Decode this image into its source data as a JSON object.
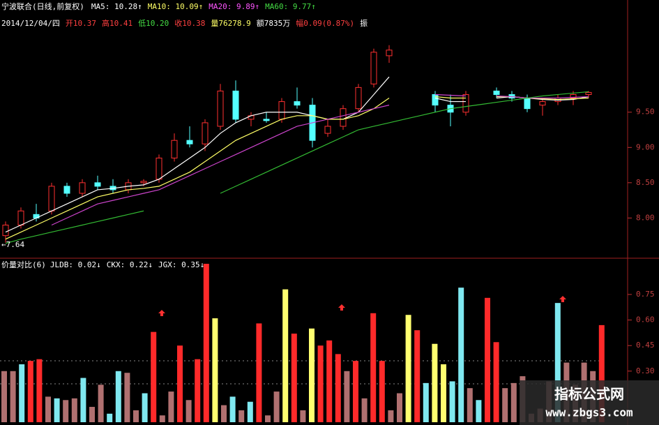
{
  "chart_data": [
    {
      "type": "candlestick",
      "title": "宁波联合(日线,前复权)",
      "legend": [
        {
          "text": "MA5: 10.28↑",
          "color": "#ffffff"
        },
        {
          "text": "MA10: 10.09↑",
          "color": "#ffff66"
        },
        {
          "text": "MA20: 9.89↑",
          "color": "#ff55ff"
        },
        {
          "text": "MA60: 9.77↑",
          "color": "#44dd44"
        }
      ],
      "info": [
        {
          "text": "2014/12/04/四",
          "color": "#ffffff"
        },
        {
          "text": "开10.37",
          "color": "#ff4040"
        },
        {
          "text": "高10.41",
          "color": "#ff4040"
        },
        {
          "text": "低10.20",
          "color": "#44dd44"
        },
        {
          "text": "收10.38",
          "color": "#ff4040"
        },
        {
          "text": "量76278.9",
          "color": "#ffff66"
        },
        {
          "text": "额7835万",
          "color": "#ffffff"
        },
        {
          "text": "幅0.09(0.87%)",
          "color": "#ff4040"
        },
        {
          "text": "振",
          "color": "#ffffff"
        }
      ],
      "annotation": "←7.64",
      "open": [
        7.75,
        7.9,
        8.05,
        8.1,
        8.45,
        8.35,
        8.5,
        8.45,
        8.4,
        8.5,
        8.55,
        8.85,
        9.1,
        9.05,
        9.3,
        9.8,
        9.4,
        9.4,
        9.4,
        9.65,
        9.6,
        9.2,
        9.3,
        9.55,
        9.9,
        10.3,
        null,
        null,
        9.75,
        9.6,
        9.5,
        null,
        9.8,
        9.75,
        9.7,
        9.6,
        9.65,
        9.7,
        9.75
      ],
      "high": [
        7.95,
        8.15,
        8.2,
        8.5,
        8.5,
        8.55,
        8.6,
        8.55,
        8.55,
        8.55,
        8.9,
        9.2,
        9.3,
        9.4,
        9.9,
        9.95,
        9.5,
        9.5,
        9.7,
        9.85,
        9.7,
        9.4,
        9.6,
        9.9,
        10.4,
        10.45,
        null,
        null,
        9.8,
        9.75,
        9.8,
        null,
        9.85,
        9.8,
        9.75,
        9.7,
        9.75,
        9.8,
        9.8
      ],
      "low": [
        7.65,
        7.85,
        7.95,
        8.05,
        8.3,
        8.3,
        8.4,
        8.35,
        8.35,
        8.45,
        8.5,
        8.8,
        9.0,
        8.95,
        9.25,
        9.35,
        9.3,
        9.35,
        9.35,
        9.55,
        9.0,
        9.15,
        9.25,
        9.5,
        9.85,
        10.2,
        null,
        null,
        9.5,
        9.3,
        9.45,
        null,
        9.7,
        9.65,
        9.5,
        9.45,
        9.6,
        9.6,
        9.7
      ],
      "close": [
        7.9,
        8.1,
        8.0,
        8.45,
        8.35,
        8.5,
        8.45,
        8.4,
        8.5,
        8.52,
        8.85,
        9.1,
        9.05,
        9.35,
        9.8,
        9.4,
        9.45,
        9.38,
        9.65,
        9.6,
        9.1,
        9.3,
        9.55,
        9.85,
        10.35,
        10.38,
        null,
        null,
        9.6,
        9.5,
        9.75,
        null,
        9.75,
        9.7,
        9.55,
        9.65,
        9.7,
        9.75,
        9.78
      ],
      "series": [
        {
          "color": "#ffffff",
          "values": [
            7.8,
            7.9,
            8.0,
            8.1,
            8.2,
            8.3,
            8.4,
            8.42,
            8.45,
            8.47,
            8.55,
            8.7,
            8.85,
            9.0,
            9.2,
            9.35,
            9.45,
            9.5,
            9.5,
            9.5,
            9.45,
            9.4,
            9.4,
            9.5,
            9.75,
            10.0,
            null,
            null,
            9.7,
            9.65,
            9.65,
            null,
            9.7,
            9.72,
            9.7,
            9.68,
            9.67,
            9.68,
            9.72
          ]
        },
        {
          "color": "#ffff66",
          "values": [
            7.7,
            7.8,
            7.9,
            8.0,
            8.1,
            8.2,
            8.3,
            8.35,
            8.4,
            8.42,
            8.45,
            8.55,
            8.65,
            8.8,
            8.95,
            9.1,
            9.2,
            9.3,
            9.4,
            9.45,
            9.45,
            9.4,
            9.4,
            9.45,
            9.55,
            9.7,
            null,
            null,
            9.72,
            9.7,
            9.7,
            null,
            9.72,
            9.72,
            9.7,
            9.69,
            9.68,
            9.69,
            9.7
          ]
        },
        {
          "color": "#cc44cc",
          "values": [
            null,
            null,
            null,
            7.9,
            8.0,
            8.1,
            8.2,
            8.25,
            8.3,
            8.35,
            8.4,
            8.5,
            8.6,
            8.7,
            8.8,
            8.9,
            9.0,
            9.1,
            9.2,
            9.3,
            9.35,
            9.4,
            9.45,
            9.5,
            9.55,
            9.6,
            null,
            null,
            9.75,
            9.74,
            9.73,
            null,
            9.73,
            9.72,
            9.7,
            9.7,
            9.7,
            9.71,
            9.72
          ]
        },
        {
          "color": "#33bb33",
          "values": [
            7.64,
            7.7,
            7.75,
            7.8,
            7.85,
            7.9,
            7.95,
            8.0,
            8.05,
            8.1,
            null,
            null,
            null,
            null,
            8.35,
            8.45,
            8.55,
            8.65,
            8.75,
            8.85,
            8.95,
            9.05,
            9.15,
            9.25,
            9.3,
            9.35,
            9.4,
            9.45,
            9.5,
            9.55,
            9.58,
            9.61,
            9.64,
            9.67,
            9.7,
            9.73,
            9.75,
            9.77,
            9.79
          ]
        }
      ],
      "ylim": [
        7.43,
        11.09
      ],
      "yticks": [
        {
          "value": 8,
          "label": "8.00"
        },
        {
          "value": 8.5,
          "label": "8.50"
        },
        {
          "value": 9,
          "label": "9.00"
        },
        {
          "value": 9.5,
          "label": "9.50"
        }
      ]
    },
    {
      "type": "bar",
      "title": "价量对比(6)",
      "legend": [
        {
          "text": "JLDB: 0.02↓",
          "color": "#ffffff"
        },
        {
          "text": "CKX: 0.22↓",
          "color": "#ffffff"
        },
        {
          "text": "JGX: 0.35↓",
          "color": "#ffffff"
        }
      ],
      "values": [
        0.3,
        0.3,
        0.34,
        0.36,
        0.37,
        0.15,
        0.14,
        0.13,
        0.14,
        0.26,
        0.09,
        0.22,
        0.05,
        0.3,
        0.29,
        0.07,
        0.17,
        0.53,
        0.04,
        0.18,
        0.45,
        0.13,
        0.37,
        0.93,
        0.61,
        0.1,
        0.15,
        0.07,
        0.12,
        0.58,
        0.04,
        0.18,
        0.78,
        0.52,
        0.07,
        0.55,
        0.45,
        0.48,
        0.4,
        0.3,
        0.36,
        0.14,
        0.64,
        0.36,
        0.07,
        0.17,
        0.63,
        0.54,
        0.23,
        0.46,
        0.34,
        0.24,
        0.79,
        0.2,
        0.13,
        0.73,
        0.47,
        0.2,
        0.23,
        0.27,
        0.05,
        0.08,
        0.24,
        0.7,
        0.35,
        0.22,
        0.35,
        0.3,
        0.57
      ],
      "colors": [
        "#b07070",
        "#b07070",
        "#7fe8f0",
        "#ff2a2a",
        "#ff2a2a",
        "#b07070",
        "#7fe8f0",
        "#b07070",
        "#b07070",
        "#7fe8f0",
        "#b07070",
        "#b07070",
        "#7fe8f0",
        "#7fe8f0",
        "#b07070",
        "#b07070",
        "#7fe8f0",
        "#ff2a2a",
        "#b07070",
        "#b07070",
        "#ff2a2a",
        "#b07070",
        "#ff2a2a",
        "#ff2a2a",
        "#ffff70",
        "#b07070",
        "#7fe8f0",
        "#b07070",
        "#7fe8f0",
        "#ff2a2a",
        "#b07070",
        "#b07070",
        "#ffff70",
        "#ff2a2a",
        "#b07070",
        "#ffff70",
        "#ff2a2a",
        "#ff2a2a",
        "#ff2a2a",
        "#b07070",
        "#ff2a2a",
        "#b07070",
        "#ff2a2a",
        "#ff2a2a",
        "#b07070",
        "#b07070",
        "#ffff70",
        "#ff2a2a",
        "#7fe8f0",
        "#ffff70",
        "#ffff70",
        "#7fe8f0",
        "#7fe8f0",
        "#b07070",
        "#7fe8f0",
        "#ff2a2a",
        "#ff2a2a",
        "#b07070",
        "#b07070",
        "#b07070",
        "#b07070",
        "#b07070",
        "#b07070",
        "#7fe8f0",
        "#b07070",
        "#b07070",
        "#b07070",
        "#b07070",
        "#ff2a2a"
      ],
      "ylim": [
        0,
        0.93
      ],
      "yticks": [
        {
          "value": 0.3,
          "label": "0.30"
        },
        {
          "value": 0.45,
          "label": "0.45"
        },
        {
          "value": 0.6,
          "label": "0.60"
        },
        {
          "value": 0.75,
          "label": "0.75"
        }
      ]
    }
  ],
  "watermark": {
    "name": "指标公式网",
    "url": "www.zbgs3.com"
  }
}
